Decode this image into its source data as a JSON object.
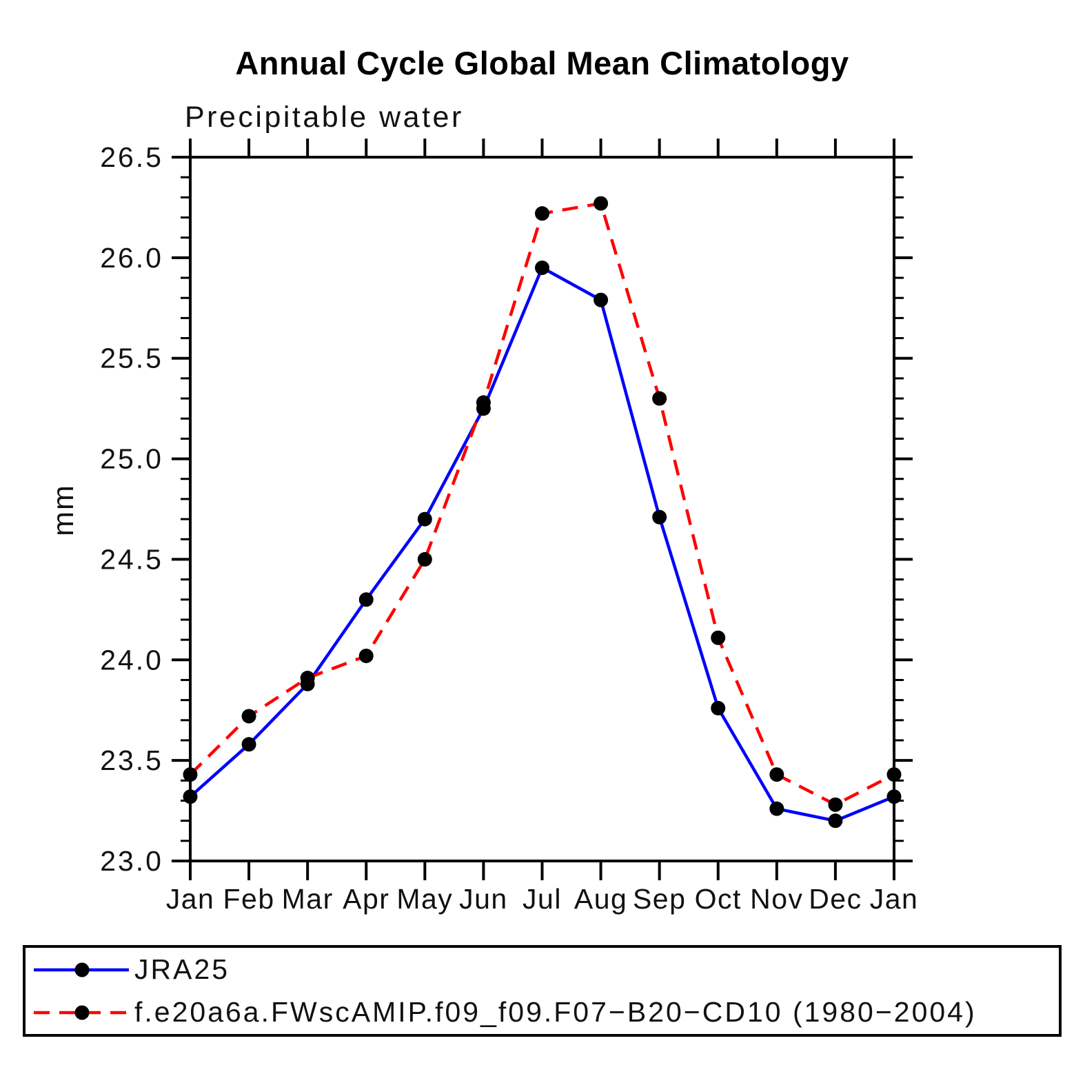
{
  "chart_data": {
    "type": "line",
    "title": "Annual Cycle Global Mean Climatology",
    "subtitle": "Precipitable water",
    "xlabel": "",
    "ylabel": "mm",
    "categories": [
      "Jan",
      "Feb",
      "Mar",
      "Apr",
      "May",
      "Jun",
      "Jul",
      "Aug",
      "Sep",
      "Oct",
      "Nov",
      "Dec",
      "Jan"
    ],
    "ylim": [
      23.0,
      26.5
    ],
    "ytick_major_step": 0.5,
    "ytick_minor_step": 0.1,
    "ytick_labels": [
      "23.0",
      "23.5",
      "24.0",
      "24.5",
      "25.0",
      "25.5",
      "26.0",
      "26.5"
    ],
    "grid": "off",
    "frame": "box with outward ticks",
    "legend_position": "bottom-box",
    "marker": "filled-circle",
    "marker_color": "#000000",
    "series": [
      {
        "name": "JRA25",
        "color": "#0000ff",
        "line_style": "solid",
        "values": [
          23.32,
          23.58,
          23.88,
          24.3,
          24.7,
          25.25,
          25.95,
          25.79,
          24.71,
          23.76,
          23.26,
          23.2,
          23.32
        ]
      },
      {
        "name": "f.e20a6a.FWscAMIP.f09_f09.F07−B20−CD10 (1980−2004)",
        "color": "#ff0000",
        "line_style": "dashed",
        "values": [
          23.43,
          23.72,
          23.91,
          24.02,
          24.5,
          25.28,
          26.22,
          26.27,
          25.3,
          24.11,
          23.43,
          23.28,
          23.43
        ]
      }
    ]
  }
}
